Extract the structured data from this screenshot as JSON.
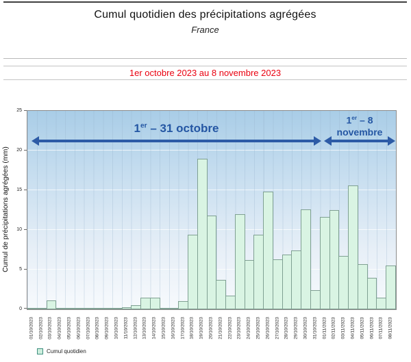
{
  "header": {
    "title": "Cumul quotidien des précipitations agrégées",
    "subtitle": "France",
    "period": "1er octobre 2023 au 8 novembre 2023"
  },
  "chart_data": {
    "type": "bar",
    "title": "Cumul quotidien des précipitations agrégées",
    "subtitle": "France",
    "xlabel": "",
    "ylabel": "Cumul de précipitations agrégées (mm)",
    "ylim": [
      0,
      25
    ],
    "yticks": [
      0,
      5,
      10,
      15,
      20,
      25
    ],
    "grid": true,
    "legend_position": "bottom-left",
    "legend": [
      "Cumul quotidien"
    ],
    "categories": [
      "01/10/2023",
      "02/10/2023",
      "03/10/2023",
      "04/10/2023",
      "05/10/2023",
      "06/10/2023",
      "07/10/2023",
      "08/10/2023",
      "09/10/2023",
      "10/10/2023",
      "11/10/2023",
      "12/10/2023",
      "13/10/2023",
      "14/10/2023",
      "15/10/2023",
      "16/10/2023",
      "17/10/2023",
      "18/10/2023",
      "19/10/2023",
      "20/10/2023",
      "21/10/2023",
      "22/10/2023",
      "23/10/2023",
      "24/10/2023",
      "25/10/2023",
      "26/10/2023",
      "27/10/2023",
      "28/10/2023",
      "29/10/2023",
      "30/10/2023",
      "31/10/2023",
      "01/11/2023",
      "02/11/2023",
      "03/11/2023",
      "04/11/2023",
      "05/11/2023",
      "06/11/2023",
      "07/11/2023",
      "08/11/2023"
    ],
    "values": [
      0.1,
      0.2,
      1.1,
      0.05,
      0.1,
      0.05,
      0.05,
      0.05,
      0.05,
      0.1,
      0.3,
      0.5,
      1.5,
      1.5,
      0.1,
      0.2,
      1.0,
      9.4,
      19.0,
      11.8,
      3.7,
      1.7,
      12.0,
      6.2,
      9.4,
      14.8,
      6.3,
      6.9,
      7.4,
      12.6,
      2.4,
      11.6,
      12.5,
      6.7,
      15.6,
      5.7,
      4.0,
      1.5,
      5.5
    ],
    "annotations": [
      {
        "text": "1er – 31 octobre",
        "range": "01/10/2023 to 31/10/2023"
      },
      {
        "text": "1er – 8 novembre",
        "range": "01/11/2023 to 08/11/2023"
      }
    ]
  },
  "annotations": {
    "october": {
      "prefix": "1",
      "sup": "er",
      "rest": " – 31 octobre"
    },
    "november": {
      "prefix": "1",
      "sup": "er",
      "rest": " – 8",
      "line2": "novembre"
    }
  },
  "colors": {
    "bar_fill": "#d9f4e3",
    "bar_border": "#7fa092",
    "arrow_blue": "#2d5ba6",
    "annotation_text": "#2456a3",
    "period_red": "#ea000f",
    "plot_gradient_top": "#a9cde7",
    "plot_gradient_bottom": "#f7fafd"
  }
}
